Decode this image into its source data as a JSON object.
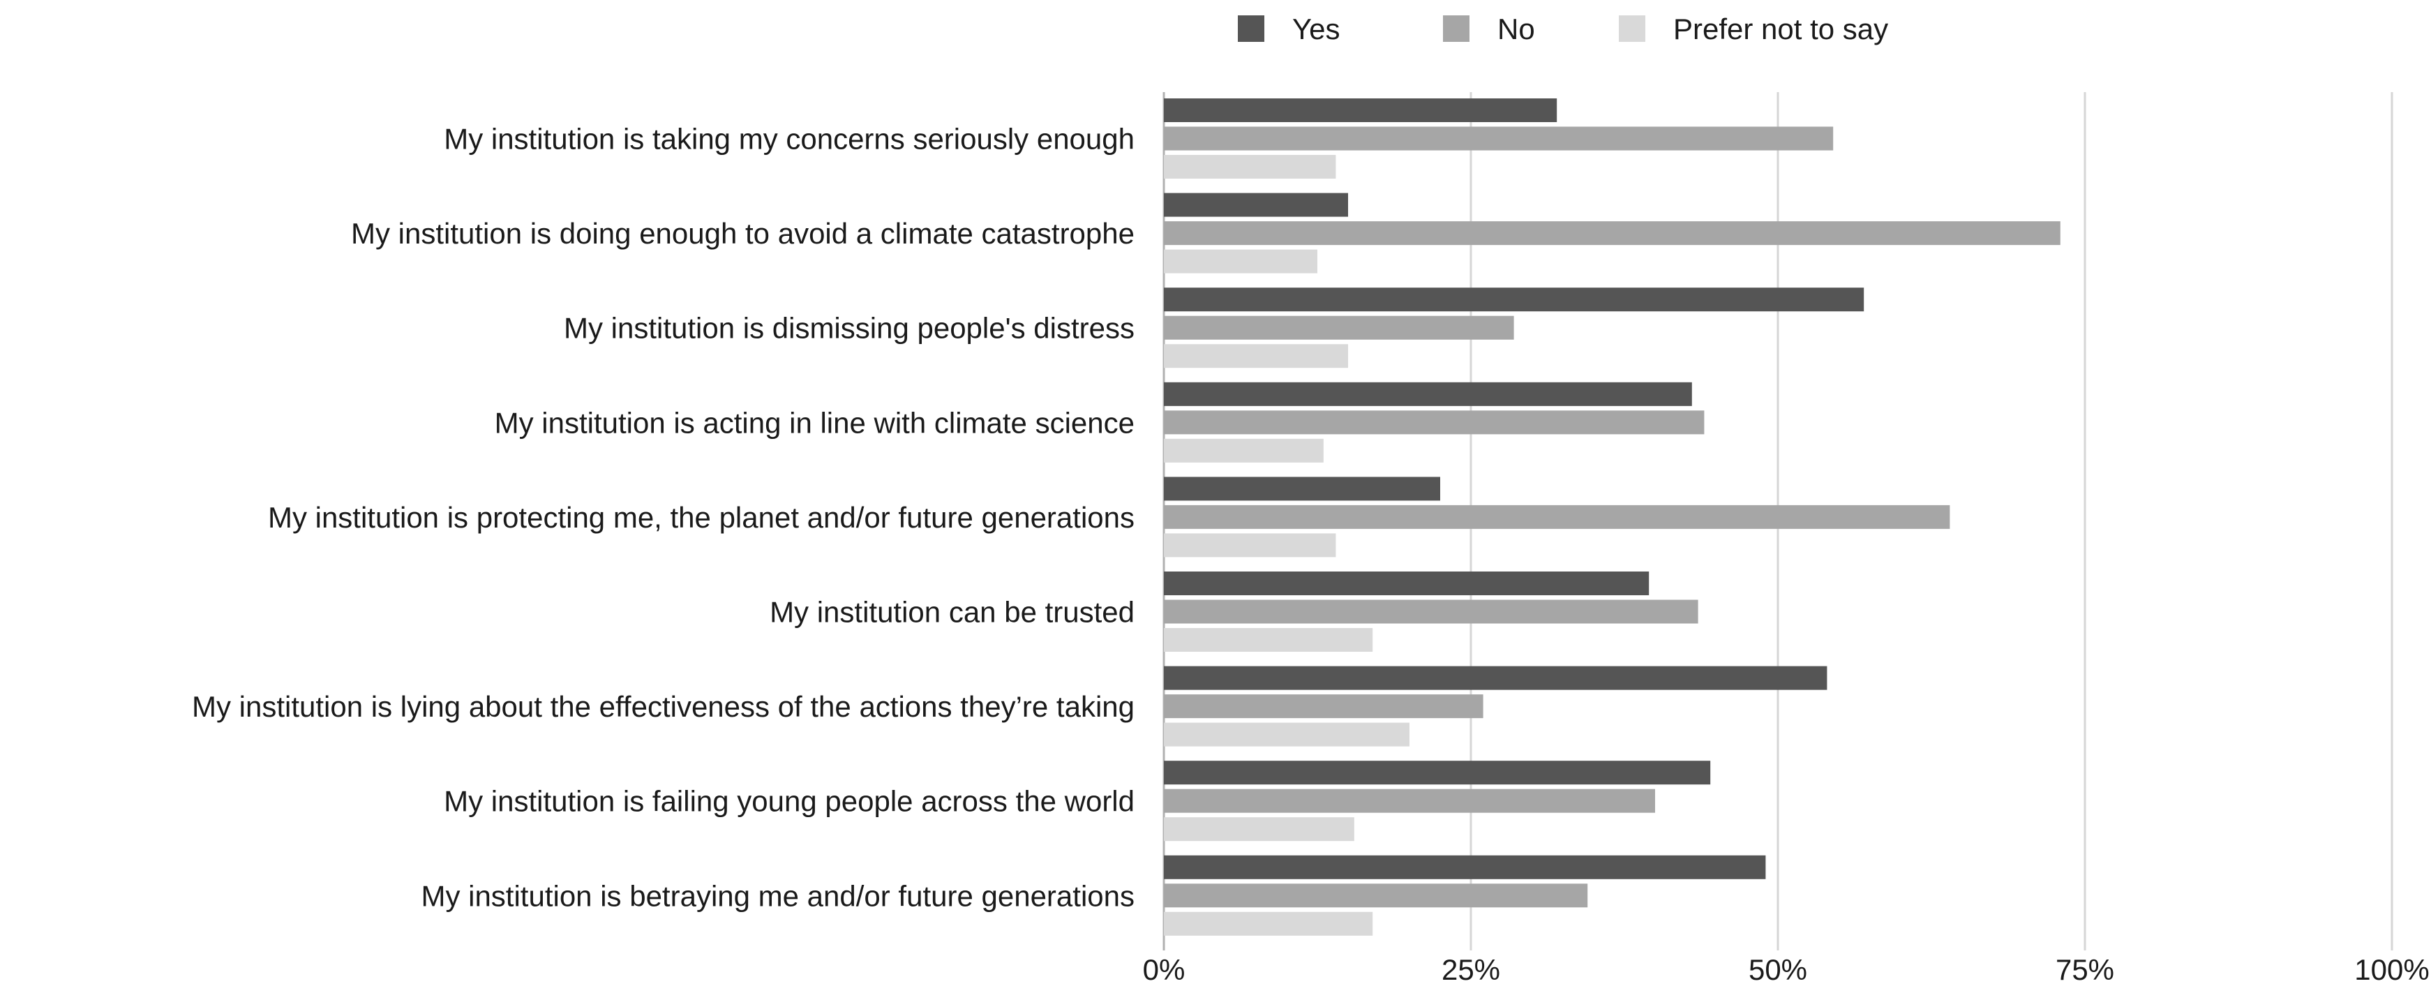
{
  "chart_data": {
    "type": "bar",
    "orientation": "horizontal",
    "title": "",
    "xlabel": "",
    "ylabel": "",
    "xlim": [
      0,
      100
    ],
    "x_ticks": [
      0,
      25,
      50,
      75,
      100
    ],
    "x_tick_labels": [
      "0%",
      "25%",
      "50%",
      "75%",
      "100%"
    ],
    "grid": "vertical",
    "legend_position": "top",
    "categories": [
      "My institution is taking my concerns seriously enough",
      "My institution is doing enough to avoid a climate catastrophe",
      "My institution is dismissing people's distress",
      "My institution is acting in line with climate science",
      "My institution is protecting me, the planet and/or future generations",
      "My institution can be trusted",
      "My institution is lying about the effectiveness of the actions they’re taking",
      "My institution is failing young people across the world",
      "My institution is betraying me and/or future generations"
    ],
    "series": [
      {
        "name": "Yes",
        "color": "#555555",
        "values": [
          32,
          15,
          57,
          43,
          22.5,
          39.5,
          54,
          44.5,
          49
        ]
      },
      {
        "name": "No",
        "color": "#a6a6a6",
        "values": [
          54.5,
          73,
          28.5,
          44,
          64,
          43.5,
          26,
          40,
          34.5
        ]
      },
      {
        "name": "Prefer not to say",
        "color": "#d9d9d9",
        "values": [
          14,
          12.5,
          15,
          13,
          14,
          17,
          20,
          15.5,
          17
        ]
      }
    ]
  }
}
